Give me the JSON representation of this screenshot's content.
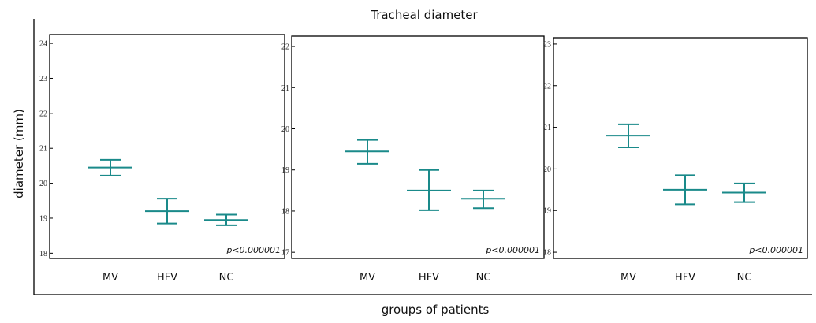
{
  "figure_title": "Tracheal diameter",
  "y_axis_label": "diameter (mm)",
  "x_axis_label": "groups of patients",
  "colors": {
    "errorbar": "#1a8a8a",
    "axis": "#000000"
  },
  "chart_data": [
    {
      "type": "errorbar",
      "categories": [
        "MV",
        "HFV",
        "NC"
      ],
      "means": [
        20.45,
        19.2,
        18.95
      ],
      "lower": [
        20.22,
        18.85,
        18.8
      ],
      "upper": [
        20.67,
        19.56,
        19.1
      ],
      "ylim": [
        17.85,
        24.25
      ],
      "yticks": [
        "18",
        "19",
        "20",
        "21",
        "22",
        "23",
        "24"
      ],
      "annotation": "p<0.000001"
    },
    {
      "type": "errorbar",
      "categories": [
        "MV",
        "HFV",
        "NC"
      ],
      "means": [
        19.45,
        18.5,
        18.3
      ],
      "lower": [
        19.15,
        18.02,
        18.07
      ],
      "upper": [
        19.73,
        19.0,
        18.5
      ],
      "ylim": [
        16.85,
        22.25
      ],
      "yticks": [
        "17",
        "18",
        "19",
        "20",
        "21",
        "22"
      ],
      "annotation": "p<0.000001"
    },
    {
      "type": "errorbar",
      "categories": [
        "MV",
        "HFV",
        "NC"
      ],
      "means": [
        20.8,
        19.5,
        19.43
      ],
      "lower": [
        20.52,
        19.15,
        19.2
      ],
      "upper": [
        21.07,
        19.85,
        19.65
      ],
      "ylim": [
        17.85,
        23.15
      ],
      "yticks": [
        "18",
        "19",
        "20",
        "21",
        "22",
        "23"
      ],
      "annotation": "p<0.000001"
    }
  ]
}
